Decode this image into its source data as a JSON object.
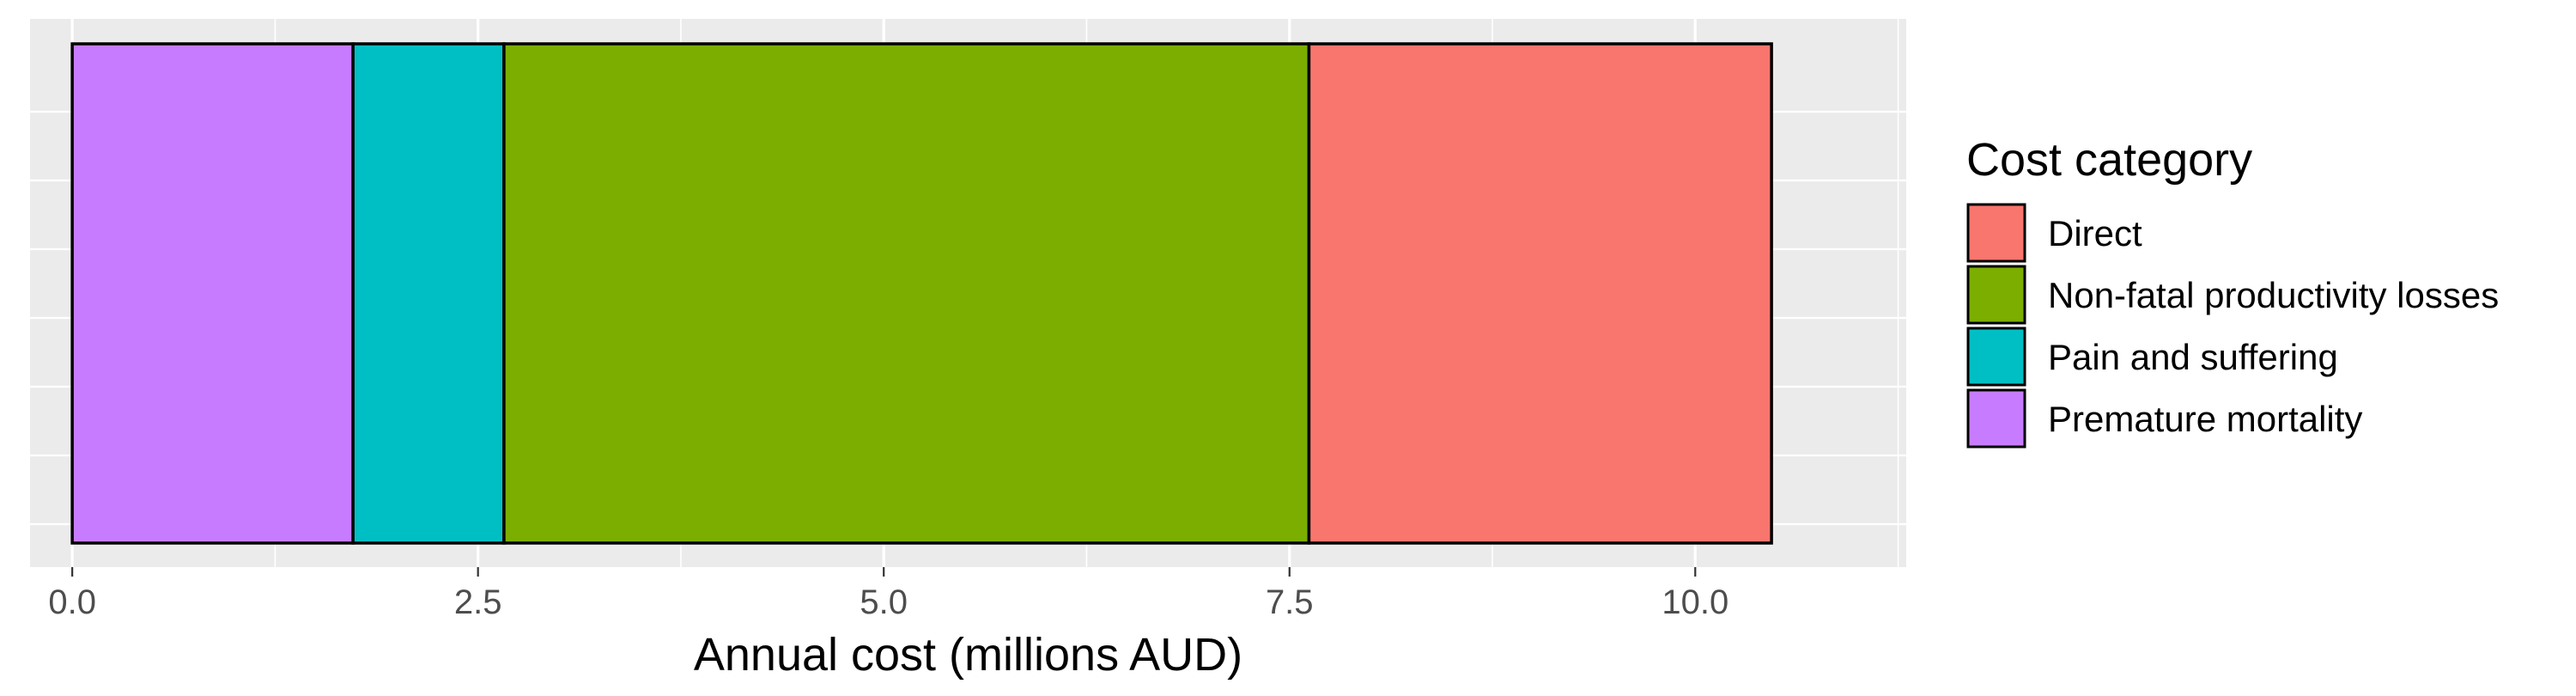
{
  "chart_data": {
    "type": "bar",
    "orientation": "horizontal",
    "stacked": true,
    "xlabel": "Annual cost (millions AUD)",
    "ylabel": "",
    "xlim": [
      -0.26,
      11.3
    ],
    "x_ticks": [
      0.0,
      2.5,
      5.0,
      7.5,
      10.0
    ],
    "x_tick_labels": [
      "0.0",
      "2.5",
      "5.0",
      "7.5",
      "10.0"
    ],
    "grid": true,
    "legend_position": "right",
    "legend_title": "Cost category",
    "series": [
      {
        "name": "Premature mortality",
        "value": 1.73,
        "color": "#C77CFF"
      },
      {
        "name": "Pain and suffering",
        "value": 0.93,
        "color": "#00BFC4"
      },
      {
        "name": "Non-fatal productivity losses",
        "value": 4.96,
        "color": "#7CAE00"
      },
      {
        "name": "Direct",
        "value": 2.85,
        "color": "#F8766D"
      }
    ],
    "legend_order": [
      "Direct",
      "Non-fatal productivity losses",
      "Pain and suffering",
      "Premature mortality"
    ]
  }
}
